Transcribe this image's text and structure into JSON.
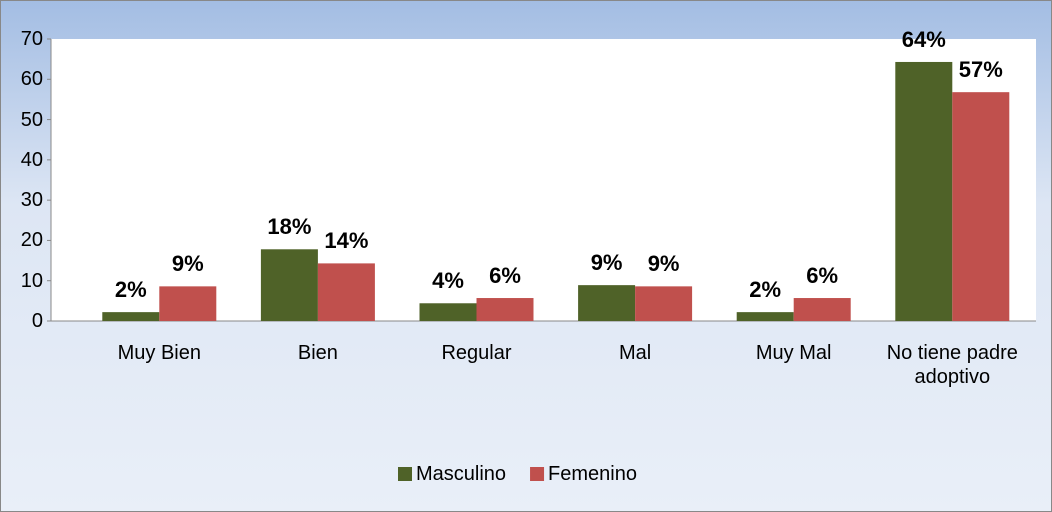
{
  "chart_data": {
    "type": "bar",
    "categories": [
      "Muy Bien",
      "Bien",
      "Regular",
      "Mal",
      "Muy Mal",
      "No tiene padre adoptivo"
    ],
    "series": [
      {
        "name": "Masculino",
        "color": "#4f6228",
        "values": [
          2.2,
          17.8,
          4.4,
          8.9,
          2.2,
          64.3
        ],
        "value_labels": [
          "2%",
          "18%",
          "4%",
          "9%",
          "2%",
          "64%"
        ]
      },
      {
        "name": "Femenino",
        "color": "#c0504d",
        "values": [
          8.6,
          14.3,
          5.7,
          8.6,
          5.7,
          56.8
        ],
        "value_labels": [
          "9%",
          "14%",
          "6%",
          "9%",
          "6%",
          "57%"
        ]
      }
    ],
    "ylim": [
      0,
      70
    ],
    "yticks": [
      0,
      10,
      20,
      30,
      40,
      50,
      60,
      70
    ],
    "legend": "bottom"
  }
}
